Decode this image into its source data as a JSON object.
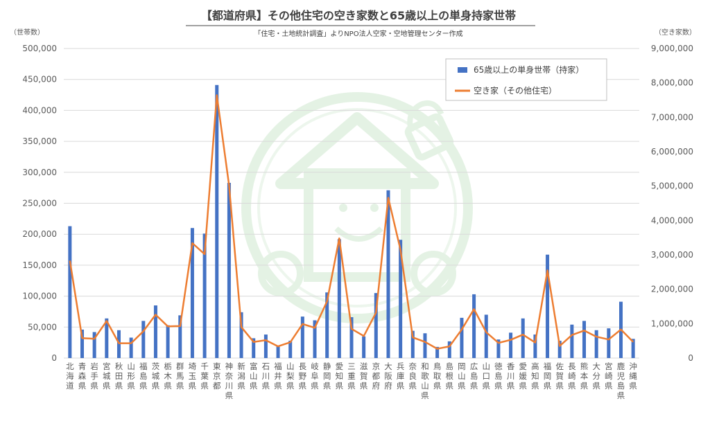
{
  "chart_data": {
    "type": "bar+line",
    "title": "【都道府県】その他住宅の空き家数と65歳以上の単身持家世帯",
    "subtitle": "「住宅・土地統計調査」よりNPO法人空家・空地管理センター作成",
    "ylabel_left": "（世帯数）",
    "ylabel_right": "（空き家数）",
    "ylim_left": [
      0,
      500000
    ],
    "ylim_right": [
      0,
      9000000
    ],
    "yticks_left": [
      "0",
      "50,000",
      "100,000",
      "150,000",
      "200,000",
      "250,000",
      "300,000",
      "350,000",
      "400,000",
      "450,000",
      "500,000"
    ],
    "yticks_right": [
      "0",
      "1,000,000",
      "2,000,000",
      "3,000,000",
      "4,000,000",
      "5,000,000",
      "6,000,000",
      "7,000,000",
      "8,000,000",
      "9,000,000"
    ],
    "grid": true,
    "legend_position": "top-right",
    "categories": [
      "北海道",
      "青森県",
      "岩手県",
      "宮城県",
      "秋田県",
      "山形県",
      "福島県",
      "茨城県",
      "栃木県",
      "群馬県",
      "埼玉県",
      "千葉県",
      "東京都",
      "神奈川県",
      "新潟県",
      "富山県",
      "石川県",
      "福井県",
      "山梨県",
      "長野県",
      "岐阜県",
      "静岡県",
      "愛知県",
      "三重県",
      "滋賀県",
      "京都府",
      "大阪府",
      "兵庫県",
      "奈良県",
      "和歌山県",
      "鳥取県",
      "島根県",
      "岡山県",
      "広島県",
      "山口県",
      "徳島県",
      "香川県",
      "愛媛県",
      "高知県",
      "福岡県",
      "佐賀県",
      "長崎県",
      "熊本県",
      "大分県",
      "宮崎県",
      "鹿児島県",
      "沖縄県"
    ],
    "series": [
      {
        "name": "65歳以上の単身世帯（持家）",
        "type": "bar",
        "axis": "left",
        "color": "#4472c4",
        "values": [
          213000,
          46000,
          42000,
          64000,
          45000,
          33000,
          60000,
          85000,
          53000,
          69000,
          210000,
          201000,
          441000,
          283000,
          74000,
          32000,
          38000,
          19000,
          28000,
          67000,
          61000,
          106000,
          192000,
          66000,
          35000,
          105000,
          271000,
          191000,
          44000,
          40000,
          18000,
          27000,
          65000,
          103000,
          70000,
          30000,
          41000,
          64000,
          38000,
          167000,
          28000,
          54000,
          60000,
          45000,
          48000,
          91000,
          31000
        ]
      },
      {
        "name": "空き家（その他住宅）",
        "type": "line",
        "axis": "right",
        "color": "#ed7d31",
        "values": [
          2830000,
          580000,
          560000,
          1080000,
          430000,
          430000,
          780000,
          1260000,
          920000,
          930000,
          3340000,
          3020000,
          7640000,
          5020000,
          900000,
          470000,
          520000,
          340000,
          460000,
          990000,
          880000,
          1650000,
          3480000,
          850000,
          640000,
          1320000,
          4660000,
          3150000,
          600000,
          470000,
          270000,
          340000,
          830000,
          1420000,
          750000,
          440000,
          530000,
          680000,
          450000,
          2550000,
          350000,
          670000,
          800000,
          620000,
          540000,
          830000,
          470000
        ]
      }
    ]
  }
}
